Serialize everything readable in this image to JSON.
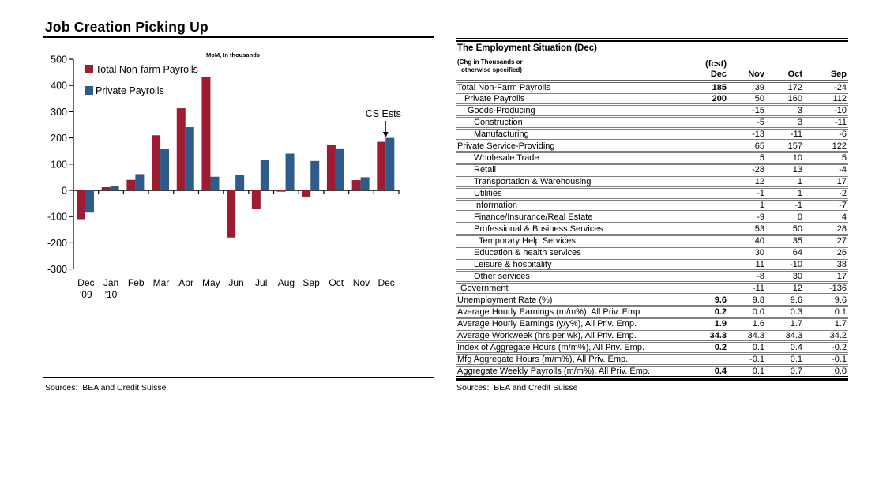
{
  "left": {
    "title": "Job Creation Picking Up",
    "sources": "Sources:  BEA and Credit Suisse"
  },
  "chart_data": {
    "type": "bar",
    "title": "MoM, In thousands",
    "categories": [
      "Dec",
      "Jan",
      "Feb",
      "Mar",
      "Apr",
      "May",
      "Jun",
      "Jul",
      "Aug",
      "Sep",
      "Oct",
      "Nov",
      "Dec"
    ],
    "year_labels": {
      "0": "'09",
      "1": "'10"
    },
    "series": [
      {
        "name": "Total Non-farm Payrolls",
        "color": "#9E1B32",
        "values": [
          -110,
          12,
          40,
          210,
          313,
          432,
          -180,
          -70,
          -5,
          -24,
          172,
          39,
          185
        ]
      },
      {
        "name": "Private Payrolls",
        "color": "#2E5C8A",
        "values": [
          -85,
          16,
          62,
          158,
          241,
          52,
          60,
          115,
          140,
          112,
          160,
          50,
          200
        ]
      }
    ],
    "ylim": [
      -300,
      500
    ],
    "ytick_step": 100,
    "grid": false,
    "legend_position": "top-left",
    "annotation": {
      "text": "CS Ests",
      "target_index": 12
    }
  },
  "table": {
    "title": "The Employment Situation (Dec)",
    "subtitle_line1": "(Chg in Thousands or",
    "subtitle_line2": "otherwise specified)",
    "col_headers": {
      "dec_top": "(fcst)",
      "dec": "Dec",
      "nov": "Nov",
      "oct": "Oct",
      "sep": "Sep"
    },
    "rows": [
      {
        "label": "Total Non-Farm Payrolls",
        "indent": 0,
        "dec": "185",
        "nov": "39",
        "oct": "172",
        "sep": "-24"
      },
      {
        "label": "Private Payrolls",
        "indent": 2,
        "dec": "200",
        "nov": "50",
        "oct": "160",
        "sep": "112"
      },
      {
        "label": "Goods-Producing",
        "indent": 3,
        "dec": "",
        "nov": "-15",
        "oct": "3",
        "sep": "-10"
      },
      {
        "label": "Construction",
        "indent": 4,
        "dec": "",
        "nov": "-5",
        "oct": "3",
        "sep": "-11"
      },
      {
        "label": "Manufacturing",
        "indent": 4,
        "dec": "",
        "nov": "-13",
        "oct": "-11",
        "sep": "-6"
      },
      {
        "label": "Private Service-Providing",
        "indent": 0,
        "dec": "",
        "nov": "65",
        "oct": "157",
        "sep": "122"
      },
      {
        "label": "Wholesale Trade",
        "indent": 4,
        "dec": "",
        "nov": "5",
        "oct": "10",
        "sep": "5"
      },
      {
        "label": "Retail",
        "indent": 4,
        "dec": "",
        "nov": "-28",
        "oct": "13",
        "sep": "-4"
      },
      {
        "label": "Transportation & Warehousing",
        "indent": 4,
        "dec": "",
        "nov": "12",
        "oct": "1",
        "sep": "17"
      },
      {
        "label": "Utilities",
        "indent": 4,
        "dec": "",
        "nov": "-1",
        "oct": "1",
        "sep": "-2"
      },
      {
        "label": "Information",
        "indent": 4,
        "dec": "",
        "nov": "1",
        "oct": "-1",
        "sep": "-7"
      },
      {
        "label": "Finance/Insurance/Real Estate",
        "indent": 4,
        "dec": "",
        "nov": "-9",
        "oct": "0",
        "sep": "4"
      },
      {
        "label": "Professional & Business Services",
        "indent": 4,
        "dec": "",
        "nov": "53",
        "oct": "50",
        "sep": "28"
      },
      {
        "label": "Temporary Help Services",
        "indent": 5,
        "dec": "",
        "nov": "40",
        "oct": "35",
        "sep": "27"
      },
      {
        "label": "Education & health services",
        "indent": 4,
        "dec": "",
        "nov": "30",
        "oct": "64",
        "sep": "26"
      },
      {
        "label": "Leisure & hospitality",
        "indent": 4,
        "dec": "",
        "nov": "11",
        "oct": "-10",
        "sep": "38"
      },
      {
        "label": "Other services",
        "indent": 4,
        "dec": "",
        "nov": "-8",
        "oct": "30",
        "sep": "17"
      },
      {
        "label": "Government",
        "indent": 1,
        "dec": "",
        "nov": "-11",
        "oct": "12",
        "sep": "-136"
      },
      {
        "label": "Unemployment Rate (%)",
        "indent": 0,
        "dec": "9.6",
        "nov": "9.8",
        "oct": "9.6",
        "sep": "9.6"
      },
      {
        "label": "Average Hourly Earnings (m/m%), All Priv. Emp",
        "indent": 0,
        "dec": "0.2",
        "nov": "0.0",
        "oct": "0.3",
        "sep": "0.1"
      },
      {
        "label": "Average Hourly Earnings (y/y%), All Priv. Emp.",
        "indent": 0,
        "dec": "1.9",
        "nov": "1.6",
        "oct": "1.7",
        "sep": "1.7"
      },
      {
        "label": "Average Workweek (hrs per wk), All Priv. Emp.",
        "indent": 0,
        "dec": "34.3",
        "nov": "34.3",
        "oct": "34.3",
        "sep": "34.2"
      },
      {
        "label": "Index of Aggregate Hours (m/m%), All Priv. Emp.",
        "indent": 0,
        "dec": "0.2",
        "nov": "0.1",
        "oct": "0.4",
        "sep": "-0.2"
      },
      {
        "label": "Mfg Aggregate Hours (m/m%), All Priv. Emp.",
        "indent": 0,
        "dec": "",
        "nov": "-0.1",
        "oct": "0.1",
        "sep": "-0.1"
      },
      {
        "label": "Aggregate Weekly Payrolls (m/m%), All Priv. Emp.",
        "indent": 0,
        "dec": "0.4",
        "nov": "0.1",
        "oct": "0.7",
        "sep": "0.0"
      }
    ],
    "sources": "Sources:  BEA and Credit Suisse"
  }
}
